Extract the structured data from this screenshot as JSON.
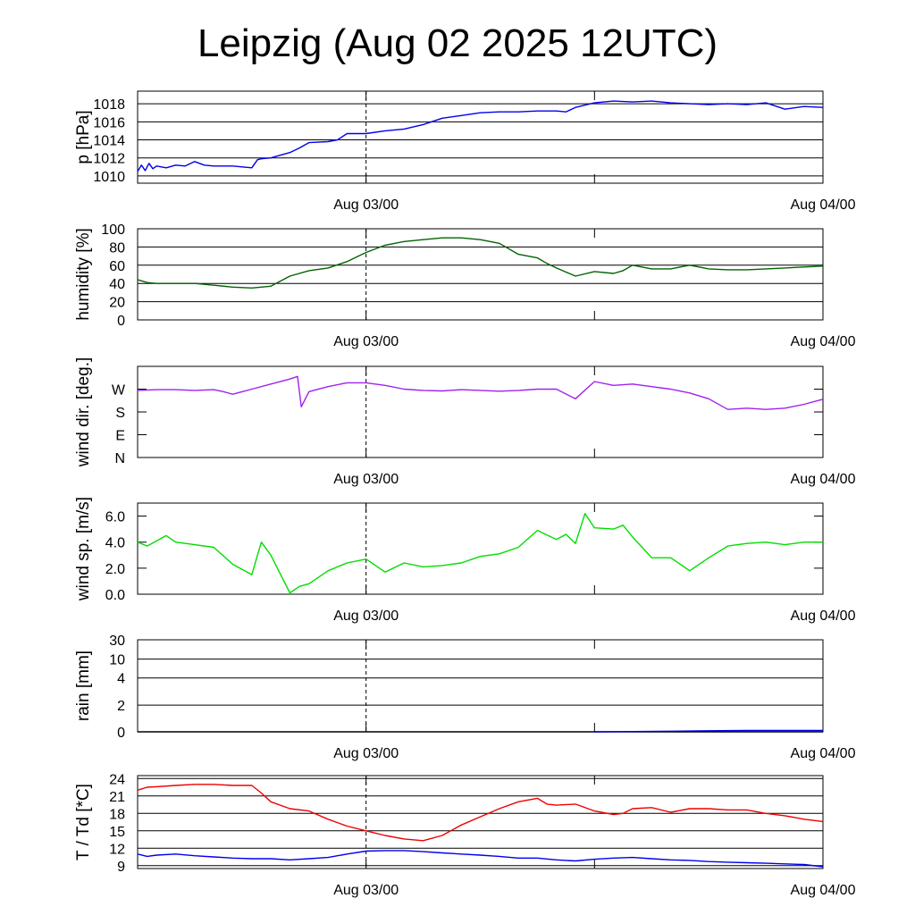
{
  "title": "Leipzig (Aug 02 2025 12UTC)",
  "chart_data": [
    {
      "type": "line",
      "ylabel": "p [hPa]",
      "ylim": [
        1009.2,
        1019.4
      ],
      "yticks": [
        1010,
        1012,
        1014,
        1016,
        1018
      ],
      "yticklabels": [
        "1010",
        "1012",
        "1014",
        "1016",
        "1018"
      ],
      "xlim_hours": [
        0,
        36
      ],
      "xticks": [
        "Aug 03/00",
        "Aug 04/00"
      ],
      "grid": true,
      "series": [
        {
          "color": "#0000ee",
          "x": [
            0,
            0.2,
            0.4,
            0.6,
            0.8,
            1,
            1.5,
            2,
            2.5,
            3,
            3.5,
            4,
            5,
            6,
            6.3,
            6.5,
            7,
            8,
            8.5,
            9,
            10,
            10.5,
            11,
            12,
            13,
            14,
            15,
            16,
            17,
            18,
            19,
            20,
            21,
            22,
            22.5,
            23,
            24,
            25,
            26,
            27,
            28,
            29,
            30,
            31,
            32,
            33,
            34,
            35,
            36
          ],
          "y": [
            1010.5,
            1011.2,
            1010.6,
            1011.4,
            1010.8,
            1011.1,
            1010.9,
            1011.2,
            1011.1,
            1011.6,
            1011.2,
            1011.1,
            1011.1,
            1010.9,
            1011.8,
            1011.9,
            1012.0,
            1012.6,
            1013.1,
            1013.7,
            1013.8,
            1014.0,
            1014.7,
            1014.7,
            1015.0,
            1015.2,
            1015.7,
            1016.4,
            1016.7,
            1017.0,
            1017.1,
            1017.1,
            1017.2,
            1017.2,
            1017.1,
            1017.6,
            1018.1,
            1018.3,
            1018.2,
            1018.3,
            1018.1,
            1018.0,
            1017.9,
            1018.0,
            1017.9,
            1018.1,
            1017.4,
            1017.7,
            1017.6
          ]
        }
      ]
    },
    {
      "type": "line",
      "ylabel": "humidity [%]",
      "ylim": [
        0,
        100
      ],
      "yticks": [
        0,
        20,
        40,
        60,
        80,
        100
      ],
      "yticklabels": [
        "0",
        "20",
        "40",
        "60",
        "80",
        "100"
      ],
      "xlim_hours": [
        0,
        36
      ],
      "xticks": [
        "Aug 03/00",
        "Aug 04/00"
      ],
      "grid": true,
      "series": [
        {
          "color": "#006400",
          "x": [
            0,
            0.5,
            1,
            2,
            3,
            4,
            5,
            6,
            7,
            8,
            9,
            10,
            11,
            12,
            13,
            14,
            15,
            16,
            17,
            18,
            19,
            20,
            21,
            21.5,
            22,
            23,
            24,
            25,
            25.5,
            26,
            27,
            28,
            29,
            30,
            31,
            32,
            33,
            34,
            35,
            36
          ],
          "y": [
            44,
            41,
            40,
            40,
            40,
            38,
            36,
            35,
            37,
            48,
            54,
            57,
            64,
            74,
            82,
            86,
            88,
            90,
            90,
            88,
            84,
            72,
            68,
            62,
            57,
            48,
            53,
            51,
            54,
            60,
            56,
            56,
            60,
            56,
            55,
            55,
            56,
            57,
            58,
            59
          ]
        }
      ]
    },
    {
      "type": "line",
      "ylabel": "wind dir. [deg.]",
      "ylim": [
        0,
        360
      ],
      "yticks": [
        0,
        90,
        180,
        270
      ],
      "yticklabels": [
        "N",
        "E",
        "S",
        "W"
      ],
      "xlim_hours": [
        0,
        36
      ],
      "xticks": [
        "Aug 03/00",
        "Aug 04/00"
      ],
      "grid": false,
      "series": [
        {
          "color": "#a020f0",
          "x": [
            0,
            1,
            2,
            3,
            4,
            4.5,
            5,
            5.5,
            6,
            7,
            8,
            8.4,
            8.6,
            9,
            10,
            11,
            12,
            13,
            14,
            15,
            16,
            17,
            18,
            19,
            20,
            21,
            22,
            23,
            24,
            25,
            26,
            27,
            28,
            29,
            30,
            31,
            32,
            33,
            34,
            35,
            36
          ],
          "y": [
            265,
            268,
            268,
            265,
            268,
            260,
            250,
            260,
            270,
            290,
            310,
            320,
            200,
            260,
            280,
            295,
            295,
            285,
            270,
            265,
            263,
            268,
            265,
            262,
            265,
            270,
            270,
            232,
            300,
            285,
            290,
            280,
            270,
            255,
            232,
            190,
            195,
            190,
            195,
            210,
            230
          ]
        }
      ]
    },
    {
      "type": "line",
      "ylabel": "wind sp. [m/s]",
      "ylim": [
        0,
        7.0
      ],
      "yticks": [
        0,
        2,
        4,
        6
      ],
      "yticklabels": [
        "0.0",
        "2.0",
        "4.0",
        "6.0"
      ],
      "xlim_hours": [
        0,
        36
      ],
      "xticks": [
        "Aug 03/00",
        "Aug 04/00"
      ],
      "grid": false,
      "series": [
        {
          "color": "#00dd00",
          "x": [
            0,
            0.5,
            1,
            1.5,
            2,
            3,
            4,
            5,
            6,
            6.5,
            7,
            8,
            8.5,
            9,
            10,
            11,
            12,
            13,
            14,
            15,
            16,
            17,
            18,
            19,
            20,
            21,
            22,
            22.5,
            23,
            23.5,
            24,
            25,
            25.5,
            26,
            27,
            28,
            29,
            30,
            31,
            32,
            33,
            34,
            35,
            36
          ],
          "y": [
            4.0,
            3.7,
            4.1,
            4.5,
            4.0,
            3.8,
            3.6,
            2.3,
            1.5,
            4.0,
            3.0,
            0.1,
            0.6,
            0.8,
            1.8,
            2.4,
            2.7,
            1.7,
            2.4,
            2.1,
            2.2,
            2.4,
            2.9,
            3.1,
            3.6,
            4.9,
            4.2,
            4.6,
            3.9,
            6.2,
            5.1,
            5.0,
            5.3,
            4.4,
            2.8,
            2.8,
            1.8,
            2.8,
            3.7,
            3.9,
            4.0,
            3.8,
            4.0,
            4.0
          ]
        }
      ]
    },
    {
      "type": "area",
      "ylabel": "rain [mm]",
      "ylim": [
        0,
        30
      ],
      "yscale": "nonlinear",
      "yticks": [
        0,
        2,
        4,
        10,
        30
      ],
      "yticklabels": [
        "0",
        "2",
        "4",
        "10",
        "30"
      ],
      "xlim_hours": [
        0,
        36
      ],
      "xticks": [
        "Aug 03/00",
        "Aug 04/00"
      ],
      "grid": true,
      "series": [
        {
          "color": "#000000",
          "x": [
            0,
            36
          ],
          "y": [
            0,
            0
          ]
        },
        {
          "color": "#0000ee",
          "x": [
            24,
            26,
            28,
            30,
            32,
            34,
            36
          ],
          "y": [
            0,
            0.02,
            0.05,
            0.08,
            0.1,
            0.1,
            0.1
          ]
        }
      ]
    },
    {
      "type": "line",
      "ylabel": "T / Td [*C]",
      "ylim": [
        8.5,
        24.5
      ],
      "yticks": [
        9,
        12,
        15,
        18,
        21,
        24
      ],
      "yticklabels": [
        "9",
        "12",
        "15",
        "18",
        "21",
        "24"
      ],
      "xlim_hours": [
        0,
        36
      ],
      "xticks": [
        "Aug 03/00",
        "Aug 04/00"
      ],
      "grid": true,
      "series": [
        {
          "color": "#ee0000",
          "x": [
            0,
            0.5,
            1,
            2,
            3,
            4,
            5,
            6,
            6.5,
            7,
            8,
            9,
            10,
            11,
            12,
            13,
            14,
            15,
            16,
            17,
            18,
            19,
            20,
            21,
            21.5,
            22,
            23,
            24,
            25,
            25.5,
            26,
            27,
            28,
            29,
            30,
            31,
            32,
            33,
            34,
            35,
            36
          ],
          "y": [
            22.0,
            22.5,
            22.6,
            22.8,
            23.0,
            23.0,
            22.8,
            22.8,
            21.5,
            20.0,
            18.8,
            18.4,
            17.0,
            15.8,
            15.0,
            14.2,
            13.6,
            13.3,
            14.2,
            16.0,
            17.4,
            18.8,
            20.0,
            20.6,
            19.6,
            19.4,
            19.6,
            18.4,
            17.8,
            18.0,
            18.8,
            19.0,
            18.2,
            18.8,
            18.8,
            18.6,
            18.6,
            18.0,
            17.6,
            17.0,
            16.6
          ]
        },
        {
          "color": "#0000ee",
          "x": [
            0,
            0.5,
            1,
            2,
            3,
            4,
            5,
            6,
            7,
            8,
            9,
            10,
            11,
            12,
            13,
            14,
            15,
            16,
            17,
            18,
            19,
            20,
            21,
            22,
            23,
            24,
            25,
            26,
            27,
            28,
            29,
            30,
            31,
            32,
            33,
            34,
            35,
            36
          ],
          "y": [
            11.0,
            10.6,
            10.8,
            11.0,
            10.7,
            10.5,
            10.3,
            10.2,
            10.2,
            10.0,
            10.2,
            10.4,
            11.0,
            11.5,
            11.6,
            11.6,
            11.4,
            11.2,
            11.0,
            10.8,
            10.6,
            10.3,
            10.3,
            10.0,
            9.8,
            10.1,
            10.3,
            10.4,
            10.2,
            10.0,
            9.9,
            9.7,
            9.6,
            9.5,
            9.4,
            9.3,
            9.2,
            8.8
          ]
        }
      ]
    }
  ]
}
